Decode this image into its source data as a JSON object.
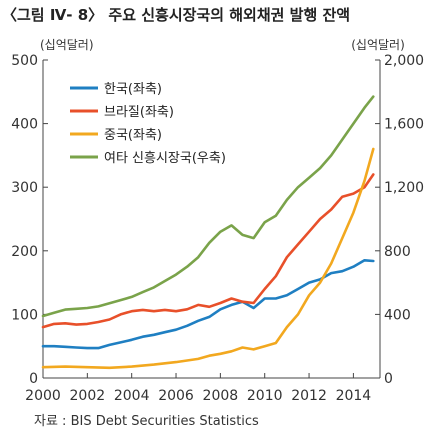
{
  "title": "〈그림 Ⅳ- 8〉 주요 신흥시장국의 해외채권 발행 잔액",
  "source": "자료 : BIS Debt Securities Statistics",
  "colors": {
    "korea": "#1f7fc2",
    "brazil": "#e8502a",
    "china": "#f2a81f",
    "other": "#7aa34a",
    "axis": "#444444",
    "grid": "#999999"
  },
  "chart_data": {
    "type": "line",
    "xlabel": "",
    "ylabel_left": "(십억달러)",
    "ylabel_right": "(십억달러)",
    "xlim": [
      2000,
      2015.2
    ],
    "ylim_left": [
      0,
      500
    ],
    "ylim_right": [
      0,
      2000
    ],
    "x_ticks": [
      "2000",
      "2002",
      "2004",
      "2006",
      "2008",
      "2010",
      "2012",
      "2014"
    ],
    "y_ticks_left": [
      "0",
      "100",
      "200",
      "300",
      "400",
      "500"
    ],
    "y_ticks_right": [
      "0",
      "400",
      "800",
      "1,200",
      "1,600",
      "2,000"
    ],
    "grid": false,
    "legend_position": "top-left",
    "series": [
      {
        "name": "한국(좌축)",
        "color_key": "korea",
        "axis": "left",
        "points": [
          [
            2000,
            50
          ],
          [
            2000.5,
            50
          ],
          [
            2001,
            49
          ],
          [
            2001.5,
            48
          ],
          [
            2002,
            47
          ],
          [
            2002.5,
            47
          ],
          [
            2003,
            52
          ],
          [
            2003.5,
            56
          ],
          [
            2004,
            60
          ],
          [
            2004.5,
            65
          ],
          [
            2005,
            68
          ],
          [
            2005.5,
            72
          ],
          [
            2006,
            76
          ],
          [
            2006.5,
            82
          ],
          [
            2007,
            90
          ],
          [
            2007.5,
            96
          ],
          [
            2008,
            108
          ],
          [
            2008.5,
            115
          ],
          [
            2009,
            120
          ],
          [
            2009.5,
            110
          ],
          [
            2010,
            125
          ],
          [
            2010.5,
            125
          ],
          [
            2011,
            130
          ],
          [
            2011.5,
            140
          ],
          [
            2012,
            150
          ],
          [
            2012.5,
            155
          ],
          [
            2013,
            165
          ],
          [
            2013.5,
            168
          ],
          [
            2014,
            175
          ],
          [
            2014.5,
            185
          ],
          [
            2014.9,
            184
          ]
        ]
      },
      {
        "name": "브라질(좌축)",
        "color_key": "brazil",
        "axis": "left",
        "points": [
          [
            2000,
            80
          ],
          [
            2000.5,
            85
          ],
          [
            2001,
            86
          ],
          [
            2001.5,
            84
          ],
          [
            2002,
            85
          ],
          [
            2002.5,
            88
          ],
          [
            2003,
            92
          ],
          [
            2003.5,
            100
          ],
          [
            2004,
            105
          ],
          [
            2004.5,
            107
          ],
          [
            2005,
            105
          ],
          [
            2005.5,
            107
          ],
          [
            2006,
            105
          ],
          [
            2006.5,
            108
          ],
          [
            2007,
            115
          ],
          [
            2007.5,
            112
          ],
          [
            2008,
            118
          ],
          [
            2008.5,
            125
          ],
          [
            2009,
            120
          ],
          [
            2009.5,
            118
          ],
          [
            2010,
            140
          ],
          [
            2010.5,
            160
          ],
          [
            2011,
            190
          ],
          [
            2011.5,
            210
          ],
          [
            2012,
            230
          ],
          [
            2012.5,
            250
          ],
          [
            2013,
            265
          ],
          [
            2013.5,
            285
          ],
          [
            2014,
            290
          ],
          [
            2014.5,
            300
          ],
          [
            2014.9,
            320
          ]
        ]
      },
      {
        "name": "중국(좌축)",
        "color_key": "china",
        "axis": "left",
        "points": [
          [
            2000,
            17
          ],
          [
            2001,
            18
          ],
          [
            2002,
            17
          ],
          [
            2003,
            16
          ],
          [
            2004,
            18
          ],
          [
            2005,
            21
          ],
          [
            2006,
            25
          ],
          [
            2007,
            30
          ],
          [
            2007.5,
            35
          ],
          [
            2008,
            38
          ],
          [
            2008.5,
            42
          ],
          [
            2009,
            48
          ],
          [
            2009.5,
            45
          ],
          [
            2010,
            50
          ],
          [
            2010.5,
            55
          ],
          [
            2011,
            80
          ],
          [
            2011.5,
            100
          ],
          [
            2012,
            130
          ],
          [
            2012.5,
            150
          ],
          [
            2013,
            180
          ],
          [
            2013.5,
            220
          ],
          [
            2014,
            260
          ],
          [
            2014.5,
            310
          ],
          [
            2014.9,
            360
          ]
        ]
      },
      {
        "name": "여타 신흥시장국(우축)",
        "color_key": "other",
        "axis": "right",
        "points": [
          [
            2000,
            390
          ],
          [
            2000.5,
            410
          ],
          [
            2001,
            430
          ],
          [
            2001.5,
            435
          ],
          [
            2002,
            440
          ],
          [
            2002.5,
            450
          ],
          [
            2003,
            470
          ],
          [
            2003.5,
            490
          ],
          [
            2004,
            510
          ],
          [
            2004.5,
            540
          ],
          [
            2005,
            570
          ],
          [
            2005.5,
            610
          ],
          [
            2006,
            650
          ],
          [
            2006.5,
            700
          ],
          [
            2007,
            760
          ],
          [
            2007.5,
            850
          ],
          [
            2008,
            920
          ],
          [
            2008.5,
            960
          ],
          [
            2009,
            900
          ],
          [
            2009.5,
            880
          ],
          [
            2010,
            980
          ],
          [
            2010.5,
            1020
          ],
          [
            2011,
            1120
          ],
          [
            2011.5,
            1200
          ],
          [
            2012,
            1260
          ],
          [
            2012.5,
            1320
          ],
          [
            2013,
            1400
          ],
          [
            2013.5,
            1500
          ],
          [
            2014,
            1600
          ],
          [
            2014.5,
            1700
          ],
          [
            2014.9,
            1770
          ]
        ]
      }
    ]
  }
}
